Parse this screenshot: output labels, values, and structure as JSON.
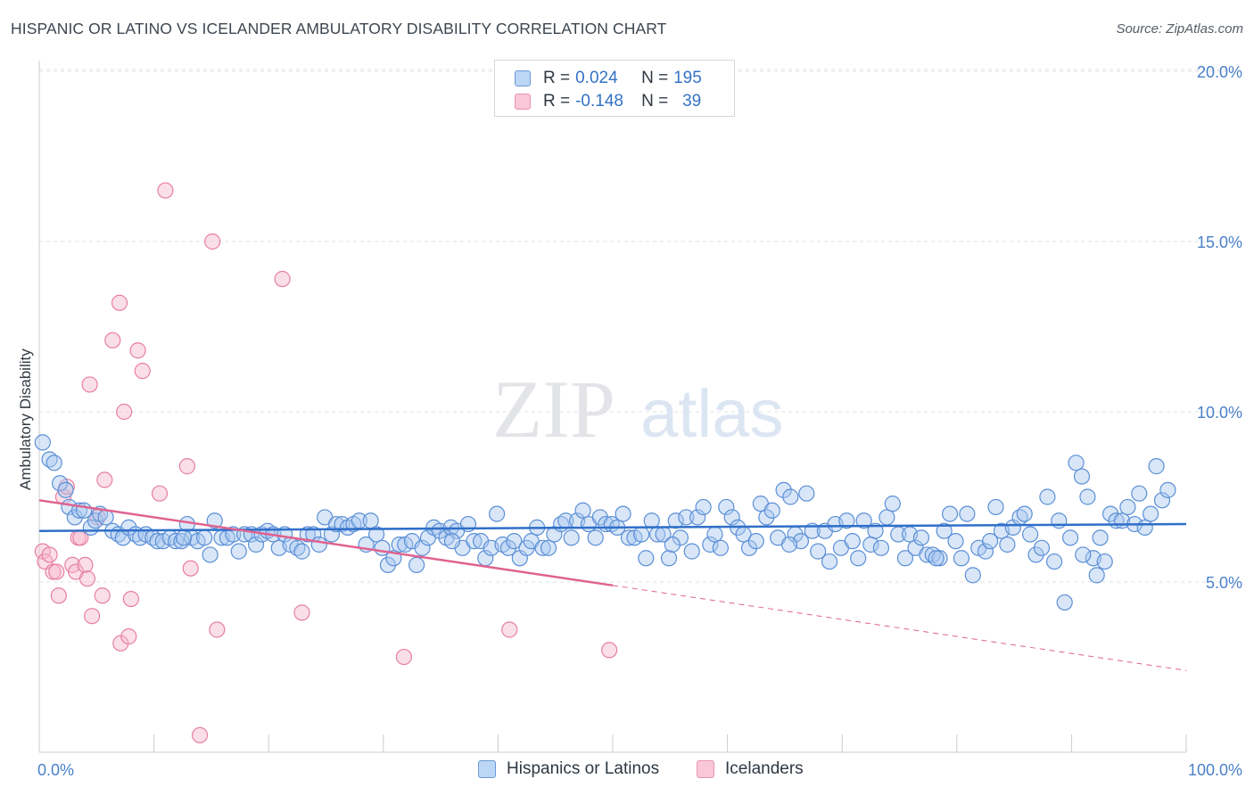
{
  "header": {
    "title": "HISPANIC OR LATINO VS ICELANDER AMBULATORY DISABILITY CORRELATION CHART",
    "source": "Source: ZipAtlas.com"
  },
  "watermark": {
    "zip": "ZIP",
    "atlas": "atlas"
  },
  "legend": {
    "rows": [
      {
        "r_label": "R =",
        "r_value": "0.024",
        "n_label": "N =",
        "n_value": "195"
      },
      {
        "r_label": "R =",
        "r_value": "-0.148",
        "n_label": "N =",
        "n_value": "39"
      }
    ]
  },
  "bottom_legend": {
    "items": [
      {
        "label": "Hispanics or Latinos"
      },
      {
        "label": "Icelanders"
      }
    ]
  },
  "colors": {
    "blue_fill": "#a8c8f0",
    "blue_stroke": "#5b8fd6",
    "blue_line": "#2f6fc9",
    "pink_fill": "#f7b8cc",
    "pink_stroke": "#e67fa3",
    "pink_line": "#e0628f",
    "tick_text": "#4a80c8",
    "grid": "#dde1e5"
  },
  "chart_data": {
    "type": "scatter",
    "title": "HISPANIC OR LATINO VS ICELANDER AMBULATORY DISABILITY CORRELATION CHART",
    "xlabel": "",
    "ylabel": "Ambulatory Disability",
    "xlim": [
      0,
      100
    ],
    "ylim": [
      0,
      20.5
    ],
    "x_tick_labels": [
      "0.0%",
      "100.0%"
    ],
    "y_ticks": [
      5,
      10,
      15,
      20
    ],
    "y_tick_labels": [
      "5.0%",
      "10.0%",
      "15.0%",
      "20.0%"
    ],
    "grid": true,
    "legend_position": "top-center",
    "series": [
      {
        "name": "Hispanics or Latinos",
        "R": 0.024,
        "N": 195,
        "trend": {
          "x": [
            0,
            100
          ],
          "y": [
            6.5,
            6.7
          ]
        },
        "points": [
          [
            0.3,
            9.1
          ],
          [
            0.9,
            8.6
          ],
          [
            1.3,
            8.5
          ],
          [
            1.8,
            7.9
          ],
          [
            2.3,
            7.7
          ],
          [
            2.6,
            7.2
          ],
          [
            3.1,
            6.9
          ],
          [
            3.5,
            7.1
          ],
          [
            3.9,
            7.1
          ],
          [
            4.5,
            6.6
          ],
          [
            4.9,
            6.8
          ],
          [
            5.3,
            7.0
          ],
          [
            5.8,
            6.9
          ],
          [
            6.4,
            6.5
          ],
          [
            6.9,
            6.4
          ],
          [
            7.3,
            6.3
          ],
          [
            7.8,
            6.6
          ],
          [
            8.4,
            6.4
          ],
          [
            8.8,
            6.3
          ],
          [
            9.3,
            6.4
          ],
          [
            9.9,
            6.3
          ],
          [
            10.3,
            6.2
          ],
          [
            10.8,
            6.2
          ],
          [
            11.4,
            6.3
          ],
          [
            11.9,
            6.2
          ],
          [
            12.4,
            6.2
          ],
          [
            12.9,
            6.7
          ],
          [
            13.3,
            6.3
          ],
          [
            13.8,
            6.2
          ],
          [
            14.4,
            6.3
          ],
          [
            14.9,
            5.8
          ],
          [
            15.3,
            6.8
          ],
          [
            15.9,
            6.3
          ],
          [
            16.4,
            6.3
          ],
          [
            16.9,
            6.4
          ],
          [
            17.4,
            5.9
          ],
          [
            17.9,
            6.4
          ],
          [
            18.5,
            6.4
          ],
          [
            18.9,
            6.1
          ],
          [
            19.4,
            6.4
          ],
          [
            19.9,
            6.5
          ],
          [
            20.4,
            6.4
          ],
          [
            20.9,
            6.0
          ],
          [
            21.4,
            6.4
          ],
          [
            21.9,
            6.1
          ],
          [
            22.5,
            6.0
          ],
          [
            22.9,
            5.9
          ],
          [
            23.4,
            6.4
          ],
          [
            23.9,
            6.4
          ],
          [
            24.4,
            6.1
          ],
          [
            24.9,
            6.9
          ],
          [
            25.5,
            6.4
          ],
          [
            25.9,
            6.7
          ],
          [
            26.4,
            6.7
          ],
          [
            26.9,
            6.6
          ],
          [
            27.4,
            6.7
          ],
          [
            27.9,
            6.8
          ],
          [
            28.5,
            6.1
          ],
          [
            28.9,
            6.8
          ],
          [
            29.4,
            6.4
          ],
          [
            29.9,
            6.0
          ],
          [
            30.4,
            5.5
          ],
          [
            30.9,
            5.7
          ],
          [
            31.4,
            6.1
          ],
          [
            31.9,
            6.1
          ],
          [
            32.5,
            6.2
          ],
          [
            32.9,
            5.5
          ],
          [
            33.4,
            6.0
          ],
          [
            33.9,
            6.3
          ],
          [
            34.4,
            6.6
          ],
          [
            34.9,
            6.5
          ],
          [
            35.5,
            6.3
          ],
          [
            35.9,
            6.6
          ],
          [
            36.4,
            6.5
          ],
          [
            36.9,
            6.0
          ],
          [
            37.4,
            6.7
          ],
          [
            37.9,
            6.2
          ],
          [
            38.5,
            6.2
          ],
          [
            38.9,
            5.7
          ],
          [
            39.4,
            6.0
          ],
          [
            39.9,
            7.0
          ],
          [
            40.4,
            6.1
          ],
          [
            40.9,
            6.0
          ],
          [
            41.4,
            6.2
          ],
          [
            41.9,
            5.7
          ],
          [
            42.5,
            6.0
          ],
          [
            42.9,
            6.2
          ],
          [
            43.4,
            6.6
          ],
          [
            43.9,
            6.0
          ],
          [
            44.4,
            6.0
          ],
          [
            44.9,
            6.4
          ],
          [
            45.5,
            6.7
          ],
          [
            45.9,
            6.8
          ],
          [
            46.4,
            6.3
          ],
          [
            46.9,
            6.8
          ],
          [
            47.4,
            7.1
          ],
          [
            47.9,
            6.7
          ],
          [
            48.5,
            6.3
          ],
          [
            48.9,
            6.9
          ],
          [
            49.4,
            6.7
          ],
          [
            49.9,
            6.7
          ],
          [
            50.4,
            6.6
          ],
          [
            50.9,
            7.0
          ],
          [
            51.4,
            6.3
          ],
          [
            51.9,
            6.3
          ],
          [
            52.5,
            6.4
          ],
          [
            52.9,
            5.7
          ],
          [
            53.4,
            6.8
          ],
          [
            53.9,
            6.4
          ],
          [
            54.4,
            6.4
          ],
          [
            54.9,
            5.7
          ],
          [
            55.5,
            6.8
          ],
          [
            55.9,
            6.3
          ],
          [
            56.4,
            6.9
          ],
          [
            56.9,
            5.9
          ],
          [
            57.4,
            6.9
          ],
          [
            57.9,
            7.2
          ],
          [
            58.5,
            6.1
          ],
          [
            58.9,
            6.4
          ],
          [
            59.4,
            6.0
          ],
          [
            59.9,
            7.2
          ],
          [
            60.4,
            6.9
          ],
          [
            60.9,
            6.6
          ],
          [
            61.4,
            6.4
          ],
          [
            61.9,
            6.0
          ],
          [
            62.5,
            6.2
          ],
          [
            62.9,
            7.3
          ],
          [
            63.4,
            6.9
          ],
          [
            63.9,
            7.1
          ],
          [
            64.4,
            6.3
          ],
          [
            64.9,
            7.7
          ],
          [
            65.5,
            7.5
          ],
          [
            65.9,
            6.4
          ],
          [
            66.4,
            6.2
          ],
          [
            66.9,
            7.6
          ],
          [
            67.4,
            6.5
          ],
          [
            67.9,
            5.9
          ],
          [
            68.5,
            6.5
          ],
          [
            68.9,
            5.6
          ],
          [
            69.4,
            6.7
          ],
          [
            69.9,
            6.0
          ],
          [
            70.4,
            6.8
          ],
          [
            70.9,
            6.2
          ],
          [
            71.4,
            5.7
          ],
          [
            71.9,
            6.8
          ],
          [
            72.5,
            6.1
          ],
          [
            72.9,
            6.5
          ],
          [
            73.4,
            6.0
          ],
          [
            73.9,
            6.9
          ],
          [
            74.4,
            7.3
          ],
          [
            74.9,
            6.4
          ],
          [
            75.5,
            5.7
          ],
          [
            75.9,
            6.4
          ],
          [
            76.4,
            6.0
          ],
          [
            76.9,
            6.3
          ],
          [
            77.4,
            5.8
          ],
          [
            77.9,
            5.8
          ],
          [
            78.5,
            5.7
          ],
          [
            78.9,
            6.5
          ],
          [
            79.4,
            7.0
          ],
          [
            79.9,
            6.2
          ],
          [
            80.4,
            5.7
          ],
          [
            80.9,
            7.0
          ],
          [
            81.4,
            5.2
          ],
          [
            81.9,
            6.0
          ],
          [
            82.5,
            5.9
          ],
          [
            82.9,
            6.2
          ],
          [
            83.4,
            7.2
          ],
          [
            83.9,
            6.5
          ],
          [
            84.4,
            6.1
          ],
          [
            84.9,
            6.6
          ],
          [
            85.5,
            6.9
          ],
          [
            85.9,
            7.0
          ],
          [
            86.4,
            6.4
          ],
          [
            86.9,
            5.8
          ],
          [
            87.4,
            6.0
          ],
          [
            87.9,
            7.5
          ],
          [
            88.5,
            5.6
          ],
          [
            88.9,
            6.8
          ],
          [
            89.4,
            4.4
          ],
          [
            89.9,
            6.3
          ],
          [
            90.4,
            8.5
          ],
          [
            90.9,
            8.1
          ],
          [
            91.4,
            7.5
          ],
          [
            91.9,
            5.7
          ],
          [
            92.5,
            6.3
          ],
          [
            92.9,
            5.6
          ],
          [
            93.4,
            7.0
          ],
          [
            93.9,
            6.8
          ],
          [
            94.4,
            6.8
          ],
          [
            94.9,
            7.2
          ],
          [
            95.5,
            6.7
          ],
          [
            95.9,
            7.6
          ],
          [
            96.4,
            6.6
          ],
          [
            96.9,
            7.0
          ],
          [
            97.4,
            8.4
          ],
          [
            97.9,
            7.4
          ],
          [
            98.4,
            7.7
          ],
          [
            92.2,
            5.2
          ],
          [
            91.0,
            5.8
          ],
          [
            78.2,
            5.7
          ],
          [
            65.4,
            6.1
          ],
          [
            55.2,
            6.1
          ],
          [
            36.0,
            6.2
          ],
          [
            12.6,
            6.3
          ]
        ]
      },
      {
        "name": "Icelanders",
        "R": -0.148,
        "N": 39,
        "trend": {
          "x": [
            0,
            50
          ],
          "y": [
            7.4,
            4.9
          ]
        },
        "trend_dashed": {
          "x": [
            50,
            100
          ],
          "y": [
            4.9,
            2.4
          ]
        },
        "points": [
          [
            0.3,
            5.9
          ],
          [
            0.5,
            5.6
          ],
          [
            0.9,
            5.8
          ],
          [
            1.2,
            5.3
          ],
          [
            1.5,
            5.3
          ],
          [
            1.7,
            4.6
          ],
          [
            2.1,
            7.5
          ],
          [
            2.4,
            7.8
          ],
          [
            2.9,
            5.5
          ],
          [
            3.2,
            5.3
          ],
          [
            3.4,
            6.3
          ],
          [
            3.6,
            6.3
          ],
          [
            4.0,
            5.5
          ],
          [
            4.2,
            5.1
          ],
          [
            4.4,
            10.8
          ],
          [
            4.6,
            4.0
          ],
          [
            5.1,
            6.9
          ],
          [
            5.5,
            4.6
          ],
          [
            5.7,
            8.0
          ],
          [
            6.4,
            12.1
          ],
          [
            7.0,
            13.2
          ],
          [
            7.1,
            3.2
          ],
          [
            7.4,
            10.0
          ],
          [
            7.8,
            3.4
          ],
          [
            8.0,
            4.5
          ],
          [
            8.6,
            11.8
          ],
          [
            9.0,
            11.2
          ],
          [
            10.5,
            7.6
          ],
          [
            11.0,
            16.5
          ],
          [
            12.9,
            8.4
          ],
          [
            13.2,
            5.4
          ],
          [
            14.0,
            0.5
          ],
          [
            15.1,
            15.0
          ],
          [
            15.5,
            3.6
          ],
          [
            21.2,
            13.9
          ],
          [
            22.9,
            4.1
          ],
          [
            31.8,
            2.8
          ],
          [
            41.0,
            3.6
          ],
          [
            49.7,
            3.0
          ]
        ]
      }
    ]
  }
}
